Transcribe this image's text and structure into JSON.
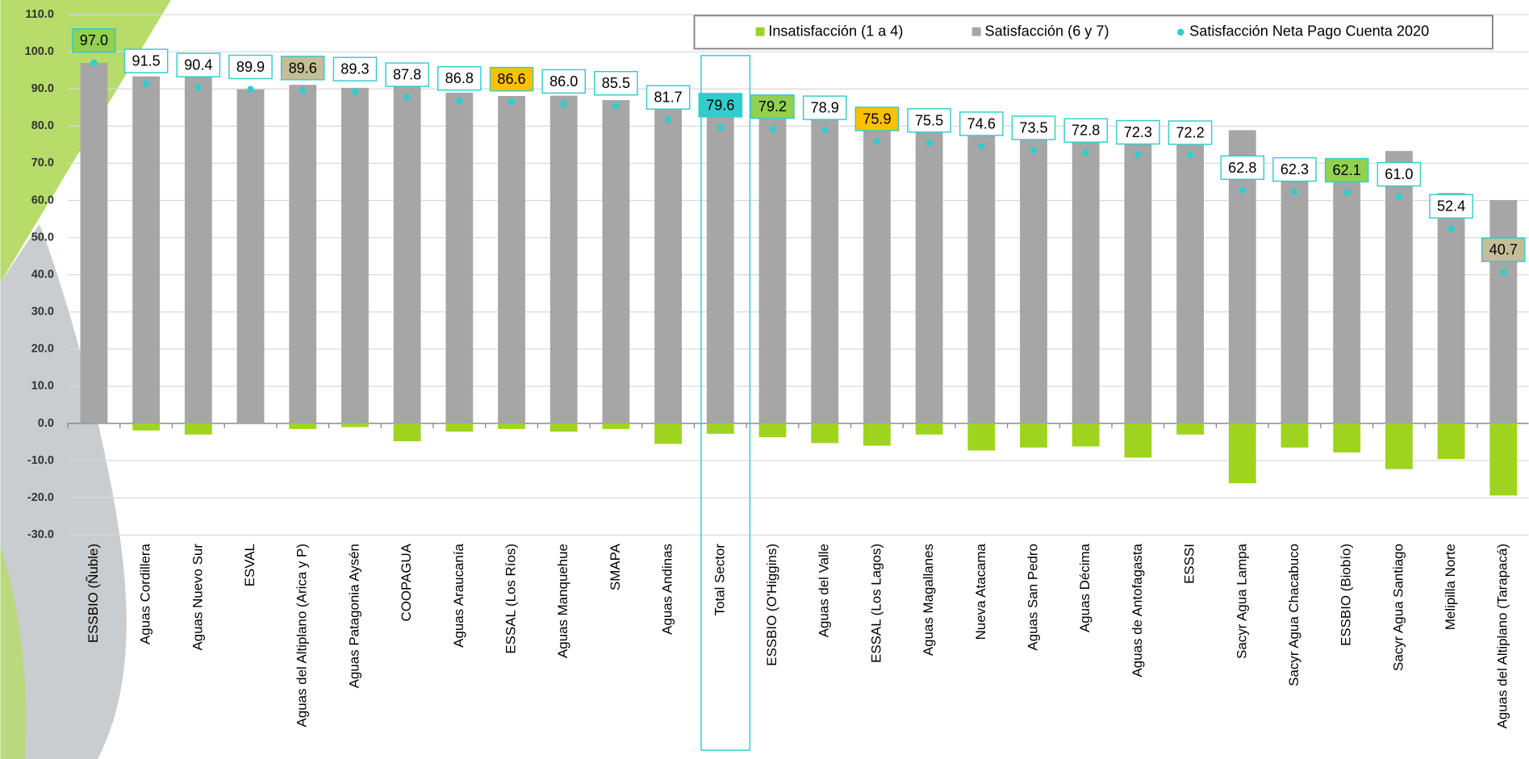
{
  "chart_data": {
    "type": "bar",
    "categories": [
      "ESSBIO (Ñuble)",
      "Aguas Cordillera",
      "Aguas Nuevo Sur",
      "ESVAL",
      "Aguas del Altiplano (Arica y P)",
      "Aguas Patagonia Aysén",
      "COOPAGUA",
      "Aguas Araucanía",
      "ESSAL (Los Ríos)",
      "Aguas Manquehue",
      "SMAPA",
      "Aguas Andinas",
      "Total Sector",
      "ESSBIO (O'Higgins)",
      "Aguas del Valle",
      "ESSAL (Los Lagos)",
      "Aguas Magallanes",
      "Nueva Atacama",
      "Aguas San Pedro",
      "Aguas Décima",
      "Aguas de Antofagasta",
      "ESSSI",
      "Sacyr Agua Lampa",
      "Sacyr Agua Chacabuco",
      "ESSBIO (Biobío)",
      "Sacyr Agua Santiago",
      "Melipilla Norte",
      "Aguas del Altiplano (Tarapacá)"
    ],
    "series": [
      {
        "name": "Insatisfacción (1 a 4)",
        "color": "#9fd41e",
        "values": [
          0,
          -1.9,
          -3.0,
          0,
          -1.5,
          -1.0,
          -4.8,
          -2.2,
          -1.5,
          -2.2,
          -1.5,
          -5.5,
          -2.8,
          -3.7,
          -5.3,
          -6.0,
          -3.0,
          -7.3,
          -6.5,
          -6.2,
          -9.2,
          -3.0,
          -16.1,
          -6.5,
          -7.8,
          -12.3,
          -9.6,
          -19.4
        ]
      },
      {
        "name": "Satisfacción (6 y 7)",
        "color": "#a6a6a6",
        "values": [
          97.0,
          93.4,
          93.4,
          89.9,
          91.1,
          90.3,
          92.6,
          89.0,
          88.1,
          88.2,
          87.0,
          87.2,
          82.4,
          82.9,
          84.2,
          81.9,
          78.5,
          81.9,
          80.0,
          79.0,
          81.5,
          75.2,
          78.9,
          68.8,
          69.9,
          73.3,
          62.0,
          60.1
        ]
      },
      {
        "name": "Satisfacción Neta Pago Cuenta 2020",
        "color": "#33cccc",
        "values": [
          97.0,
          91.5,
          90.4,
          89.9,
          89.6,
          89.3,
          87.8,
          86.8,
          86.6,
          86.0,
          85.5,
          81.7,
          79.6,
          79.2,
          78.9,
          75.9,
          75.5,
          74.6,
          73.5,
          72.8,
          72.3,
          72.2,
          62.8,
          62.3,
          62.1,
          61.0,
          52.4,
          40.7
        ],
        "value_labels": [
          "97.0",
          "91.5",
          "90.4",
          "89.9",
          "89.6",
          "89.3",
          "87.8",
          "86.8",
          "86.6",
          "86.0",
          "85.5",
          "81.7",
          "79.6",
          "79.2",
          "78.9",
          "75.9",
          "75.5",
          "74.6",
          "73.5",
          "72.8",
          "72.3",
          "72.2",
          "62.8",
          "62.3",
          "62.1",
          "61.0",
          "52.4",
          "40.7"
        ],
        "label_fills": [
          "#92d050",
          "#ffffff",
          "#ffffff",
          "#ffffff",
          "#c4bd97",
          "#ffffff",
          "#ffffff",
          "#ffffff",
          "#ffc000",
          "#ffffff",
          "#ffffff",
          "#ffffff",
          "#33cccc",
          "#92d050",
          "#ffffff",
          "#ffc000",
          "#ffffff",
          "#ffffff",
          "#ffffff",
          "#ffffff",
          "#ffffff",
          "#ffffff",
          "#ffffff",
          "#ffffff",
          "#92d050",
          "#ffffff",
          "#ffffff",
          "#c4bd97"
        ]
      }
    ],
    "ylim": [
      -30,
      110
    ],
    "yticks": [
      {
        "value": 110,
        "label": "110.0"
      },
      {
        "value": 100,
        "label": "100.0"
      },
      {
        "value": 90,
        "label": "90.0"
      },
      {
        "value": 80,
        "label": "80.0"
      },
      {
        "value": 70,
        "label": "70.0"
      },
      {
        "value": 60,
        "label": "60.0"
      },
      {
        "value": 50,
        "label": "50.0"
      },
      {
        "value": 40,
        "label": "40.0"
      },
      {
        "value": 30,
        "label": "30.0"
      },
      {
        "value": 20,
        "label": "20.0"
      },
      {
        "value": 10,
        "label": "10.0"
      },
      {
        "value": 0,
        "label": "0.0"
      },
      {
        "value": -10,
        "label": "-10.0"
      },
      {
        "value": -20,
        "label": "-20.0"
      },
      {
        "value": -30,
        "label": "-30.0"
      }
    ],
    "grid": true,
    "legend": "top"
  }
}
